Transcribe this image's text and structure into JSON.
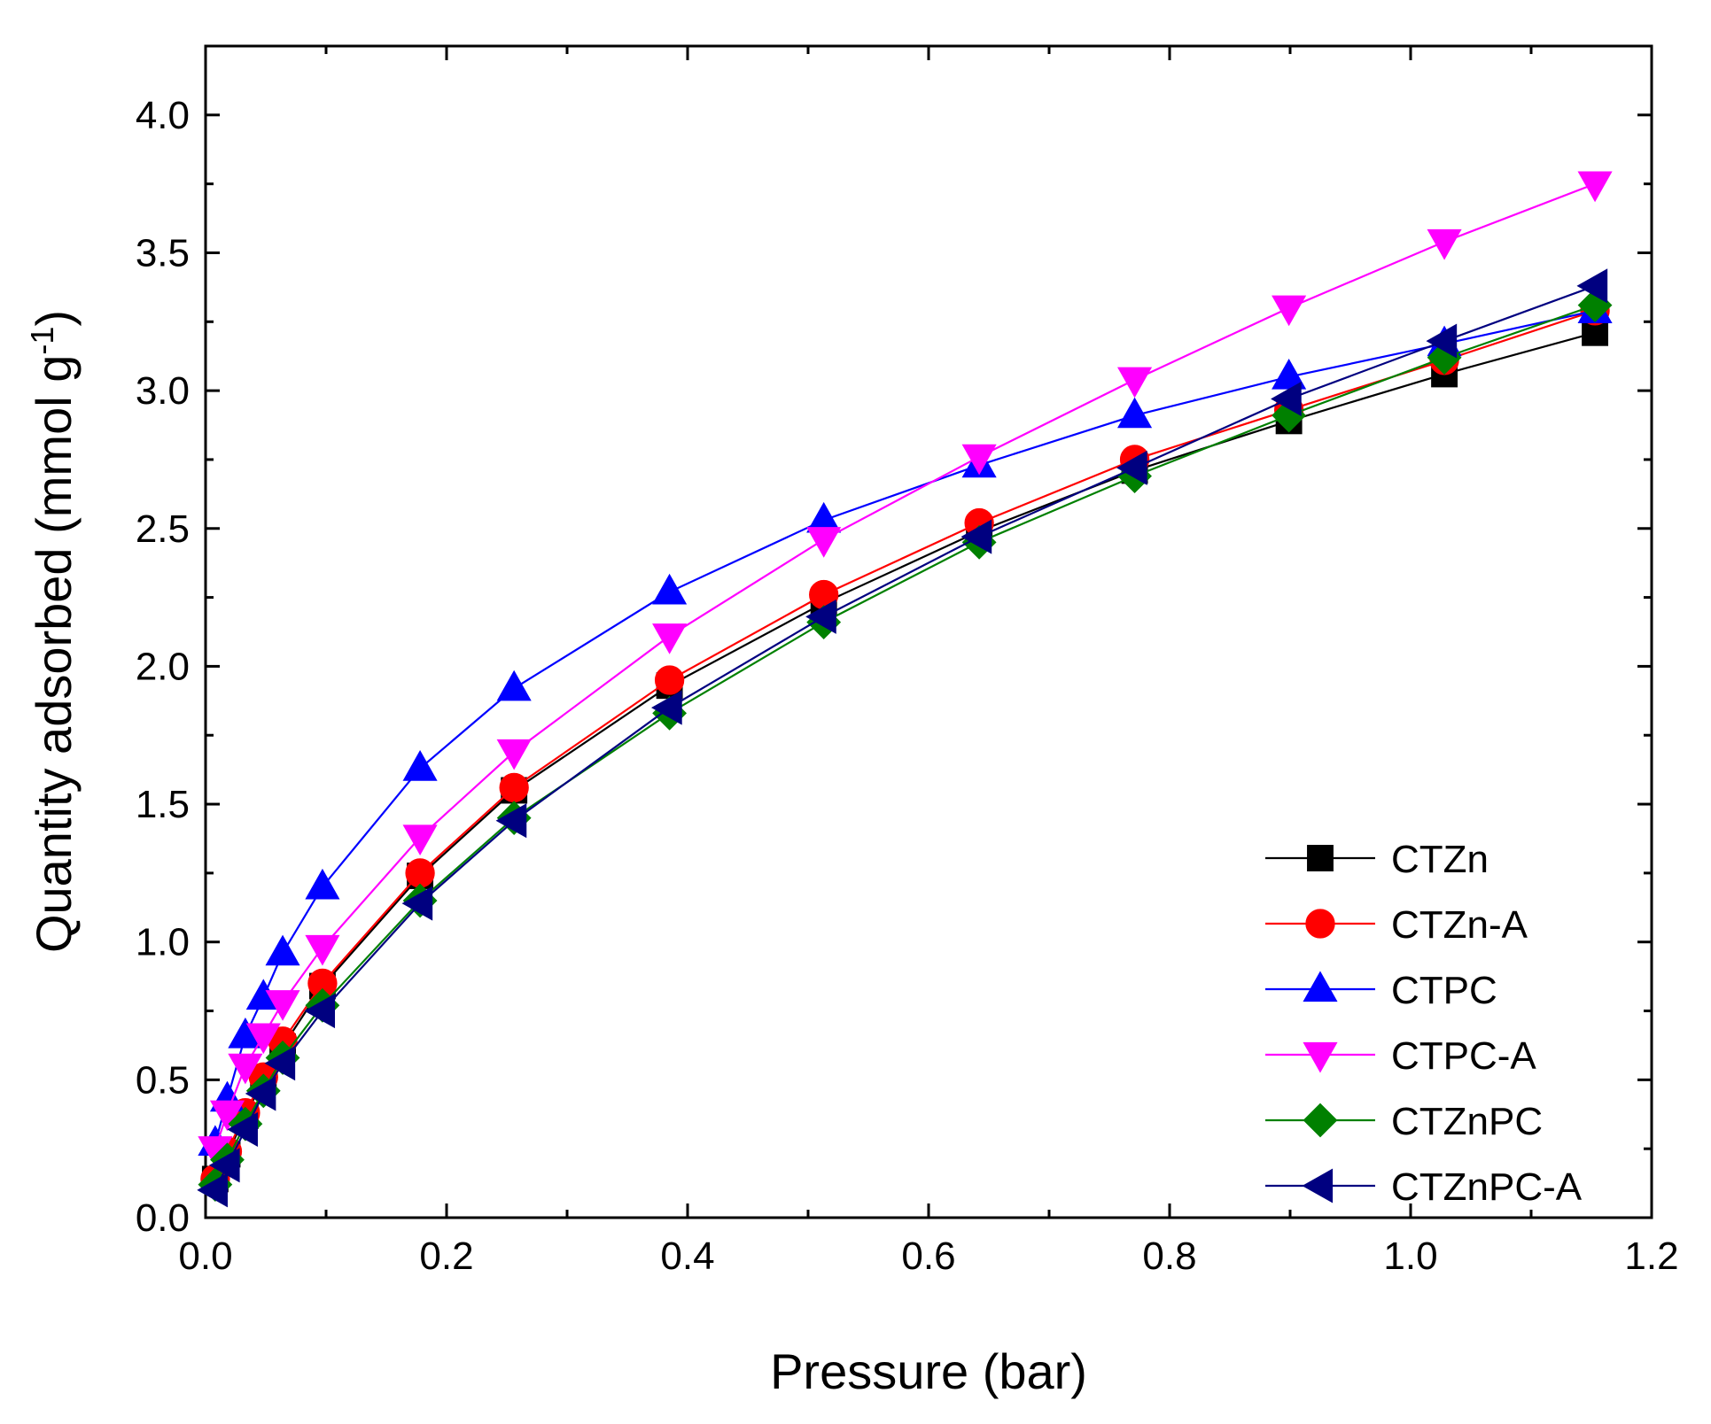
{
  "chart_data": {
    "type": "line",
    "title": "",
    "xlabel": "Pressure (bar)",
    "ylabel": {
      "main": "Quantity adsorbed (mmol g",
      "sup": "-1",
      "close": ")"
    },
    "xlim": [
      0.0,
      1.2
    ],
    "ylim": [
      0.0,
      4.25
    ],
    "xticks": [
      "0.0",
      "0.2",
      "0.4",
      "0.6",
      "0.8",
      "1.0",
      "1.2"
    ],
    "yticks": [
      "0.0",
      "0.5",
      "1.0",
      "1.5",
      "2.0",
      "2.5",
      "3.0",
      "3.5",
      "4.0"
    ],
    "legend_position": "bottom-right",
    "grid": false,
    "series": [
      {
        "name": "CTZn",
        "color": "#000000",
        "marker": "square",
        "x": [
          0.008,
          0.018,
          0.033,
          0.048,
          0.064,
          0.097,
          0.178,
          0.256,
          0.385,
          0.513,
          0.642,
          0.771,
          0.899,
          1.028,
          1.153
        ],
        "y": [
          0.14,
          0.23,
          0.37,
          0.5,
          0.62,
          0.84,
          1.24,
          1.55,
          1.93,
          2.23,
          2.49,
          2.71,
          2.89,
          3.06,
          3.21
        ]
      },
      {
        "name": "CTZn-A",
        "color": "#ff0000",
        "marker": "circle",
        "x": [
          0.008,
          0.018,
          0.033,
          0.048,
          0.064,
          0.097,
          0.178,
          0.256,
          0.385,
          0.513,
          0.642,
          0.771,
          0.899,
          1.028,
          1.153
        ],
        "y": [
          0.14,
          0.24,
          0.38,
          0.51,
          0.64,
          0.85,
          1.25,
          1.56,
          1.95,
          2.26,
          2.52,
          2.75,
          2.93,
          3.11,
          3.29
        ]
      },
      {
        "name": "CTPC",
        "color": "#0000ff",
        "marker": "triangle-up",
        "x": [
          0.008,
          0.018,
          0.033,
          0.048,
          0.064,
          0.097,
          0.178,
          0.256,
          0.385,
          0.513,
          0.642,
          0.771,
          0.899,
          1.028,
          1.153
        ],
        "y": [
          0.27,
          0.43,
          0.66,
          0.8,
          0.96,
          1.2,
          1.63,
          1.92,
          2.27,
          2.53,
          2.73,
          2.91,
          3.05,
          3.17,
          3.29
        ]
      },
      {
        "name": "CTPC-A",
        "color": "#ff00ff",
        "marker": "triangle-down",
        "x": [
          0.008,
          0.018,
          0.033,
          0.048,
          0.064,
          0.097,
          0.178,
          0.256,
          0.385,
          0.513,
          0.642,
          0.771,
          0.899,
          1.028,
          1.153
        ],
        "y": [
          0.25,
          0.38,
          0.55,
          0.66,
          0.78,
          0.98,
          1.38,
          1.69,
          2.11,
          2.46,
          2.76,
          3.04,
          3.3,
          3.54,
          3.75
        ]
      },
      {
        "name": "CTZnPC",
        "color": "#008000",
        "marker": "diamond",
        "x": [
          0.008,
          0.018,
          0.033,
          0.048,
          0.064,
          0.097,
          0.178,
          0.256,
          0.385,
          0.513,
          0.642,
          0.771,
          0.899,
          1.028,
          1.153
        ],
        "y": [
          0.12,
          0.21,
          0.34,
          0.46,
          0.58,
          0.77,
          1.15,
          1.45,
          1.83,
          2.16,
          2.45,
          2.69,
          2.91,
          3.12,
          3.31
        ]
      },
      {
        "name": "CTZnPC-A",
        "color": "#000080",
        "marker": "triangle-left",
        "x": [
          0.008,
          0.018,
          0.033,
          0.048,
          0.064,
          0.097,
          0.178,
          0.256,
          0.385,
          0.513,
          0.642,
          0.771,
          0.899,
          1.028,
          1.153
        ],
        "y": [
          0.1,
          0.19,
          0.32,
          0.45,
          0.56,
          0.75,
          1.14,
          1.44,
          1.85,
          2.18,
          2.47,
          2.72,
          2.97,
          3.18,
          3.38
        ]
      }
    ]
  }
}
